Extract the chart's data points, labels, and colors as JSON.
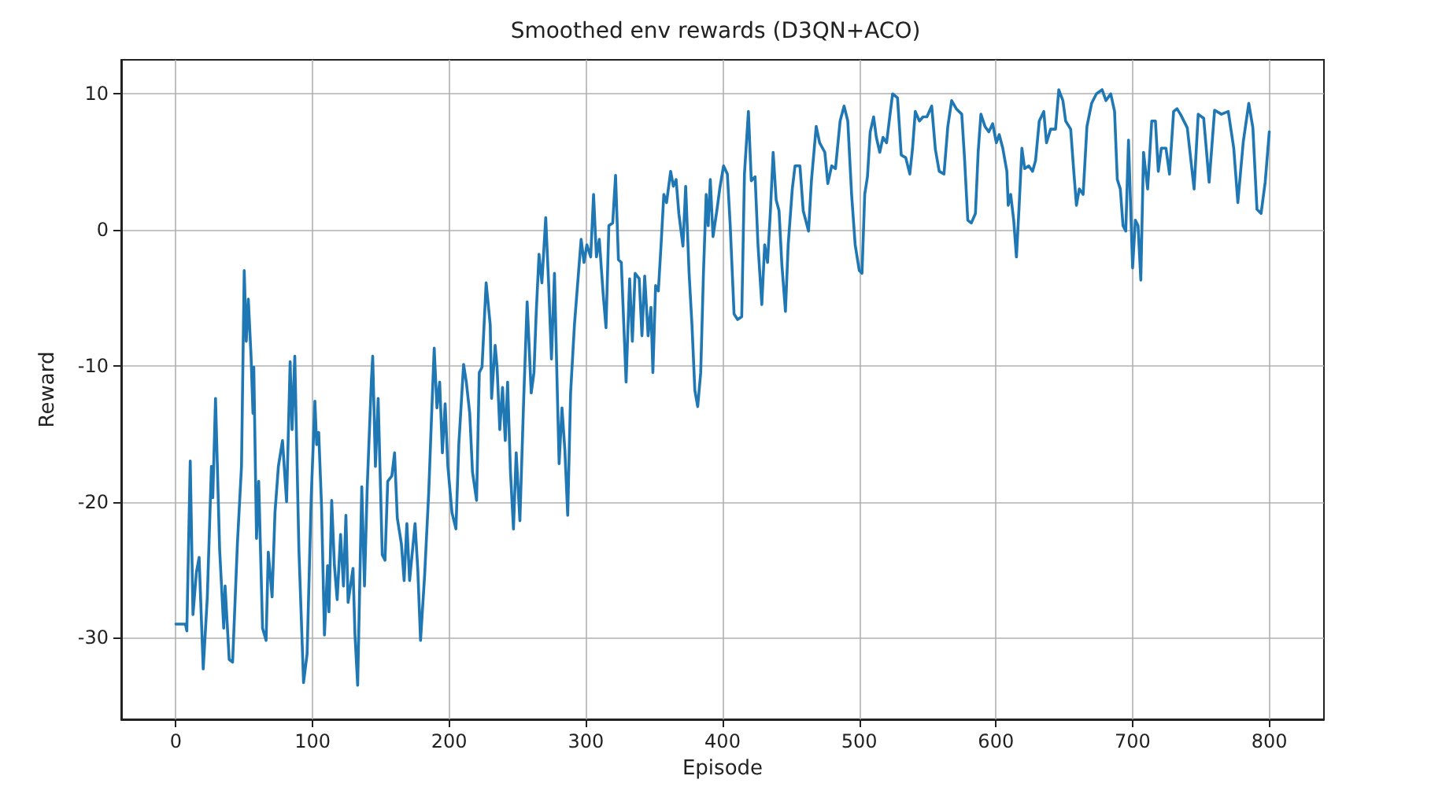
{
  "chart_data": {
    "type": "line",
    "title": "Smoothed env rewards (D3QN+ACO)",
    "xlabel": "Episode",
    "ylabel": "Reward",
    "xlim": [
      -40,
      840
    ],
    "ylim": [
      -36,
      12.5
    ],
    "xticks": [
      0,
      100,
      200,
      300,
      400,
      500,
      600,
      700,
      800
    ],
    "yticks": [
      -30,
      -20,
      -10,
      0,
      10
    ],
    "grid": true,
    "marker": "none",
    "line_style": "solid",
    "series": [
      {
        "color": "#1f77b4",
        "x": [
          0,
          7,
          8,
          10.5,
          12.5,
          15,
          17,
          20,
          23,
          26,
          27,
          29,
          32,
          35,
          36,
          39,
          41.5,
          45,
          48,
          50,
          51.5,
          53,
          55,
          56.4,
          57,
          59,
          60.6,
          63.4,
          66,
          67.6,
          70.4,
          72.5,
          75,
          78,
          81,
          83.6,
          85,
          87,
          90,
          93.4,
          96,
          99,
          101.7,
          103,
          104.5,
          106.6,
          108.7,
          111,
          112,
          114,
          116,
          118,
          120.5,
          122.6,
          124.4,
          126,
          129.6,
          131,
          133,
          136,
          138,
          140,
          143,
          144,
          146,
          148,
          151,
          153,
          155,
          158,
          160,
          162,
          165,
          167,
          169,
          171,
          175,
          177,
          179,
          182,
          185,
          187,
          189,
          191,
          193,
          195,
          197,
          199,
          202,
          204.9,
          207,
          210.5,
          212.5,
          215,
          217,
          220,
          222,
          224,
          227,
          230,
          231,
          233.6,
          235,
          237,
          239,
          241,
          242.7,
          244.8,
          247,
          249,
          251.7,
          254.5,
          257,
          260,
          262,
          263.6,
          265.7,
          267.8,
          270.6,
          272.7,
          274.8,
          277,
          279,
          280.4,
          282.5,
          284.6,
          286.7,
          288.8,
          291.6,
          294.4,
          296.5,
          298.6,
          300.7,
          303.5,
          305.6,
          307.7,
          309.8,
          312.6,
          314.7,
          316.8,
          319.6,
          321.7,
          323.8,
          325.9,
          329.4,
          332,
          334,
          336,
          339,
          341,
          343,
          345.5,
          347.6,
          349,
          351,
          353,
          355,
          357,
          359,
          362,
          364,
          366,
          368,
          371,
          373,
          375.5,
          377.6,
          379.7,
          381.8,
          384,
          386,
          388,
          389.5,
          391,
          393,
          395.8,
          397.9,
          400.7,
          403.5,
          405.6,
          408.4,
          411,
          414,
          416,
          418.9,
          421,
          423.8,
          425.9,
          428.7,
          430.8,
          432.9,
          435,
          437,
          439.2,
          441.3,
          443.4,
          446,
          448,
          451,
          453,
          456.6,
          459,
          462.9,
          465,
          468.5,
          471,
          474.8,
          477,
          479.8,
          482.6,
          486,
          488.9,
          491.6,
          494.4,
          497,
          500,
          502,
          504,
          506,
          508,
          510.5,
          512.5,
          515,
          517.4,
          520,
          522.3,
          524.4,
          528,
          530.7,
          534,
          537,
          539,
          541,
          544,
          546.7,
          549.5,
          553,
          555.7,
          558.5,
          562,
          564.8,
          567.6,
          571,
          575,
          577,
          579.4,
          582,
          585,
          587,
          589,
          592,
          594.8,
          597.6,
          600.3,
          602.4,
          605,
          608,
          609,
          610.8,
          613,
          615,
          617,
          619,
          621,
          624,
          626.8,
          629,
          631.7,
          635,
          637,
          640,
          643.6,
          646,
          649,
          651,
          654.7,
          656.8,
          658.9,
          661,
          663.8,
          666.6,
          670,
          673.5,
          677.7,
          680.5,
          684,
          686.8,
          688.8,
          691,
          693,
          695,
          697,
          700,
          702,
          704,
          706,
          708,
          711,
          714,
          716.7,
          718.8,
          721,
          724.4,
          727,
          730,
          732.5,
          735,
          740,
          745,
          748,
          752,
          756,
          760,
          765,
          770,
          774,
          777,
          781,
          785,
          788,
          791,
          794,
          797,
          800
        ],
        "values": [
          -29,
          -29,
          -29.5,
          -17,
          -28.3,
          -25.2,
          -24.1,
          -32.3,
          -27,
          -17.4,
          -19.7,
          -12.4,
          -23.5,
          -29.3,
          -26.2,
          -31.6,
          -31.8,
          -23.1,
          -17.4,
          -3,
          -8.2,
          -5.1,
          -9.3,
          -13.5,
          -10.1,
          -22.7,
          -18.5,
          -29.3,
          -30.2,
          -23.7,
          -27,
          -20.8,
          -17.4,
          -15.5,
          -20,
          -9.7,
          -14.7,
          -9.3,
          -23.5,
          -33.3,
          -31.2,
          -19.7,
          -12.6,
          -15.8,
          -14.9,
          -20.4,
          -29.8,
          -24.7,
          -28.1,
          -19.9,
          -24.7,
          -27.2,
          -22.4,
          -26.2,
          -21,
          -27.4,
          -24.9,
          -29.7,
          -33.5,
          -18.9,
          -26.2,
          -18.9,
          -11.2,
          -9.3,
          -17.4,
          -12.4,
          -23.9,
          -24.3,
          -18.5,
          -18.1,
          -16.4,
          -21.2,
          -23.1,
          -25.8,
          -21.6,
          -25.8,
          -21.6,
          -25,
          -30.2,
          -25.4,
          -19.3,
          -13.9,
          -8.7,
          -13.1,
          -11.2,
          -16.4,
          -12.8,
          -17.4,
          -20.8,
          -22,
          -15.8,
          -9.9,
          -11.2,
          -13.5,
          -17.8,
          -19.9,
          -10.5,
          -10.1,
          -3.9,
          -7,
          -12.4,
          -8.5,
          -10.1,
          -14.7,
          -11.6,
          -15.5,
          -11.2,
          -17.8,
          -22,
          -16.4,
          -21.4,
          -12.4,
          -5.3,
          -12,
          -10.5,
          -6.2,
          -1.8,
          -3.9,
          0.9,
          -3.9,
          -9.5,
          -3.2,
          -11.6,
          -17.2,
          -13.1,
          -16.2,
          -21,
          -12,
          -7,
          -3.4,
          -0.7,
          -2.4,
          -1.1,
          -2,
          2.6,
          -2,
          -0.7,
          -4.7,
          -7.2,
          0.3,
          0.5,
          4,
          -2.2,
          -2.4,
          -11.2,
          -3.6,
          -8.2,
          -3.2,
          -3.6,
          -7.8,
          -3.4,
          -7.8,
          -5.7,
          -10.5,
          -4.1,
          -4.5,
          -1.1,
          2.6,
          2,
          4.3,
          3.2,
          3.7,
          1.2,
          -1.2,
          3.2,
          -3.2,
          -7,
          -11.8,
          -13,
          -10.5,
          -3.2,
          2.6,
          0.3,
          3.7,
          -0.5,
          1.4,
          3,
          4.7,
          4.1,
          0.3,
          -6.2,
          -6.6,
          -6.4,
          4.1,
          8.7,
          3.6,
          3.9,
          -1.1,
          -5.5,
          -1.1,
          -2.4,
          1.4,
          5.7,
          2.2,
          1.4,
          -2.6,
          -6,
          -1.1,
          3,
          4.7,
          4.7,
          1.4,
          -0.1,
          3.6,
          7.6,
          6.4,
          5.7,
          3.4,
          4.7,
          4.5,
          8,
          9.1,
          8,
          2.6,
          -1.1,
          -3,
          -3.2,
          2.6,
          3.9,
          7.2,
          8.3,
          6.8,
          5.7,
          6.8,
          6.4,
          8.3,
          10,
          9.7,
          5.5,
          5.3,
          4.1,
          6,
          8.7,
          8,
          8.3,
          8.3,
          9.1,
          5.9,
          4.3,
          4.1,
          7.6,
          9.5,
          8.9,
          8.5,
          5.3,
          0.7,
          0.5,
          1.2,
          5.7,
          8.5,
          7.6,
          7.2,
          7.8,
          6.4,
          7,
          6,
          4.3,
          1.8,
          2.6,
          0.7,
          -2,
          1.8,
          6,
          4.5,
          4.7,
          4.3,
          5.1,
          8,
          8.7,
          6.4,
          7.4,
          7.4,
          10.3,
          9.5,
          8,
          7.4,
          4.5,
          1.8,
          3,
          2.6,
          7.6,
          9.3,
          10,
          10.3,
          9.5,
          10,
          8.7,
          3.7,
          3,
          0.3,
          -0.1,
          6.6,
          -2.8,
          0.7,
          0.3,
          -3.7,
          5.7,
          3,
          8,
          8,
          4.3,
          6,
          6,
          4.1,
          8.7,
          8.9,
          8.5,
          7.5,
          3,
          8.5,
          8.2,
          3.5,
          8.8,
          8.5,
          8.7,
          6,
          2,
          6.5,
          9.3,
          7.5,
          1.5,
          1.2,
          3.5,
          7.2
        ]
      }
    ]
  }
}
